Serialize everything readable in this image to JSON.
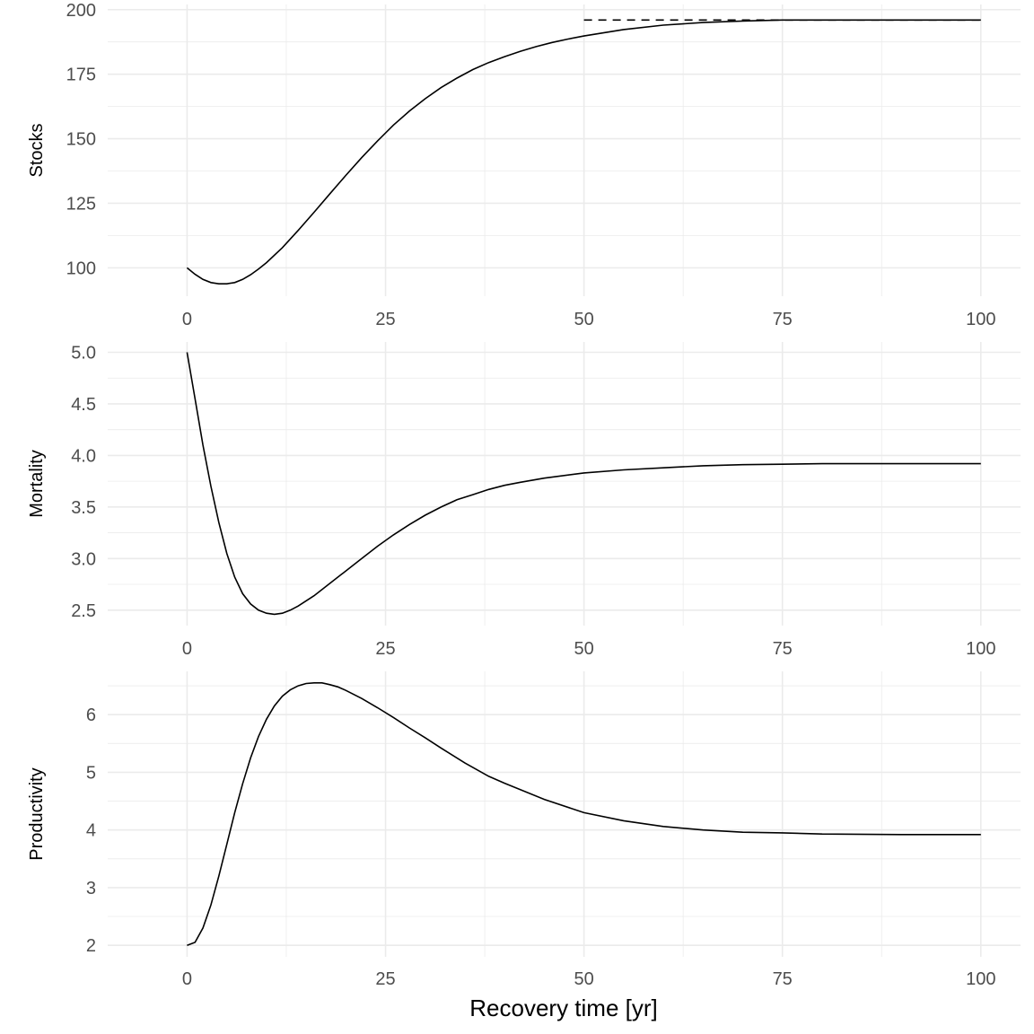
{
  "figure": {
    "xlabel": "Recovery time [yr]"
  },
  "chart_data": [
    {
      "type": "line",
      "ylabel": "Stocks",
      "xlim": [
        -10,
        105
      ],
      "ylim": [
        89,
        202
      ],
      "x_ticks": [
        0,
        25,
        50,
        75,
        100
      ],
      "x_tick_labels": [
        "0",
        "25",
        "50",
        "75",
        "100"
      ],
      "y_ticks": [
        100,
        125,
        150,
        175,
        200
      ],
      "y_tick_labels": [
        "100",
        "125",
        "150",
        "175",
        "200"
      ],
      "grid": true,
      "series": [
        {
          "style": "solid",
          "x": [
            0,
            1,
            2,
            3,
            4,
            5,
            6,
            7,
            8,
            9,
            10,
            12,
            14,
            16,
            18,
            20,
            22,
            24,
            26,
            28,
            30,
            32,
            34,
            36,
            38,
            40,
            42,
            44,
            46,
            48,
            50,
            55,
            60,
            65,
            70,
            75,
            80,
            90,
            100
          ],
          "y": [
            100,
            97.5,
            95.5,
            94.3,
            93.8,
            93.8,
            94.3,
            95.5,
            97.3,
            99.5,
            102,
            107.8,
            114.5,
            121.5,
            128.7,
            135.8,
            142.7,
            149.2,
            155.3,
            160.7,
            165.5,
            169.8,
            173.5,
            176.8,
            179.5,
            181.8,
            183.9,
            185.7,
            187.3,
            188.6,
            189.8,
            192.3,
            194,
            195,
            195.6,
            196,
            196,
            196,
            196
          ]
        },
        {
          "style": "dashed",
          "x": [
            50,
            100
          ],
          "y": [
            196,
            196
          ]
        }
      ]
    },
    {
      "type": "line",
      "ylabel": "Mortality",
      "xlim": [
        -10,
        105
      ],
      "ylim": [
        2.35,
        5.1
      ],
      "x_ticks": [
        0,
        25,
        50,
        75,
        100
      ],
      "x_tick_labels": [
        "0",
        "25",
        "50",
        "75",
        "100"
      ],
      "y_ticks": [
        2.5,
        3.0,
        3.5,
        4.0,
        4.5,
        5.0
      ],
      "y_tick_labels": [
        "2.5",
        "3.0",
        "3.5",
        "4.0",
        "4.5",
        "5.0"
      ],
      "grid": true,
      "series": [
        {
          "style": "solid",
          "x": [
            0,
            1,
            2,
            3,
            4,
            5,
            6,
            7,
            8,
            9,
            10,
            11,
            12,
            13,
            14,
            16,
            18,
            20,
            22,
            24,
            26,
            28,
            30,
            32,
            34,
            36,
            38,
            40,
            42,
            45,
            50,
            55,
            60,
            65,
            70,
            75,
            80,
            90,
            100
          ],
          "y": [
            5.0,
            4.55,
            4.1,
            3.7,
            3.35,
            3.05,
            2.82,
            2.66,
            2.56,
            2.5,
            2.47,
            2.46,
            2.47,
            2.5,
            2.54,
            2.64,
            2.76,
            2.88,
            3.0,
            3.12,
            3.23,
            3.33,
            3.42,
            3.5,
            3.57,
            3.62,
            3.67,
            3.71,
            3.74,
            3.78,
            3.83,
            3.86,
            3.88,
            3.9,
            3.91,
            3.915,
            3.92,
            3.92,
            3.92
          ]
        }
      ]
    },
    {
      "type": "line",
      "ylabel": "Productivity",
      "xlim": [
        -10,
        105
      ],
      "ylim": [
        1.8,
        6.75
      ],
      "x_ticks": [
        0,
        25,
        50,
        75,
        100
      ],
      "x_tick_labels": [
        "0",
        "25",
        "50",
        "75",
        "100"
      ],
      "y_ticks": [
        2,
        3,
        4,
        5,
        6
      ],
      "y_tick_labels": [
        "2",
        "3",
        "4",
        "5",
        "6"
      ],
      "grid": true,
      "series": [
        {
          "style": "solid",
          "x": [
            0,
            1,
            2,
            3,
            4,
            5,
            6,
            7,
            8,
            9,
            10,
            11,
            12,
            13,
            14,
            15,
            16,
            17,
            18,
            19,
            20,
            22,
            24,
            26,
            28,
            30,
            32,
            35,
            38,
            40,
            45,
            50,
            55,
            60,
            65,
            70,
            75,
            80,
            90,
            100
          ],
          "y": [
            2.0,
            2.05,
            2.3,
            2.7,
            3.2,
            3.75,
            4.3,
            4.8,
            5.25,
            5.62,
            5.92,
            6.15,
            6.32,
            6.43,
            6.5,
            6.54,
            6.55,
            6.55,
            6.52,
            6.48,
            6.42,
            6.28,
            6.12,
            5.95,
            5.77,
            5.6,
            5.42,
            5.16,
            4.93,
            4.81,
            4.53,
            4.3,
            4.16,
            4.06,
            4.0,
            3.96,
            3.95,
            3.93,
            3.92,
            3.92
          ]
        }
      ]
    }
  ]
}
